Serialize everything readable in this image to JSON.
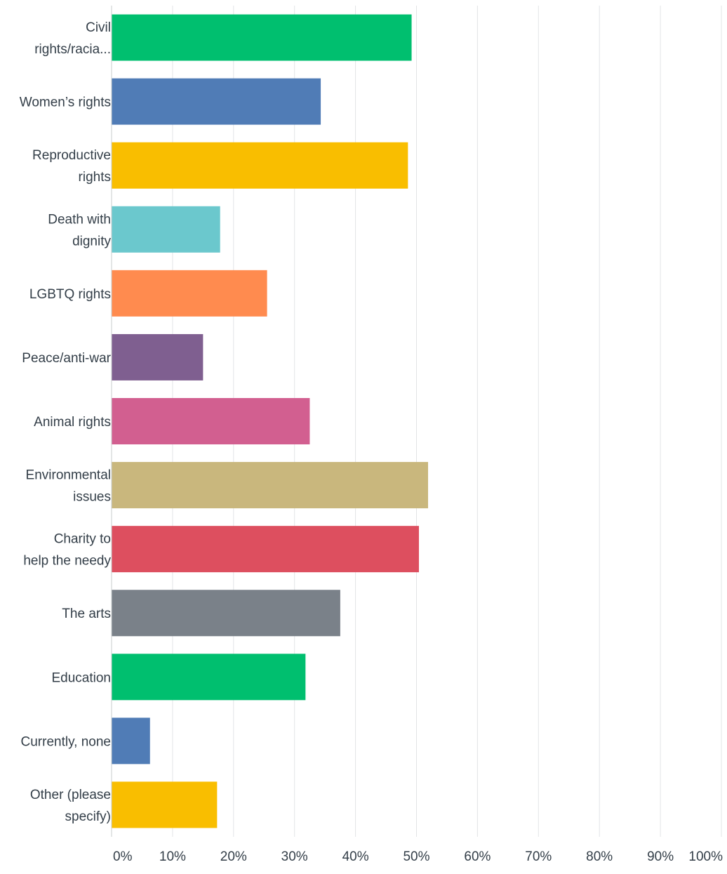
{
  "chart_data": {
    "type": "bar",
    "orientation": "horizontal",
    "categories": [
      [
        "Civil",
        "rights/racia..."
      ],
      [
        "Women’s rights"
      ],
      [
        "Reproductive",
        "rights"
      ],
      [
        "Death with",
        "dignity"
      ],
      [
        "LGBTQ rights"
      ],
      [
        "Peace/anti-war"
      ],
      [
        "Animal rights"
      ],
      [
        "Environmental",
        "issues"
      ],
      [
        "Charity to",
        "help the needy"
      ],
      [
        "The arts"
      ],
      [
        "Education"
      ],
      [
        "Currently, none"
      ],
      [
        "Other (please",
        "specify)"
      ]
    ],
    "values": [
      49.2,
      34.3,
      48.6,
      17.8,
      25.5,
      15.0,
      32.5,
      51.9,
      50.4,
      37.5,
      31.8,
      6.3,
      17.3
    ],
    "colors": [
      "#00bf6f",
      "#507cb6",
      "#f9be00",
      "#6bc8cd",
      "#ff8b4f",
      "#7f5f90",
      "#d25f90",
      "#c9b77d",
      "#dd4f5f",
      "#7a8189",
      "#00bf6f",
      "#507cb6",
      "#f9be00"
    ],
    "xlim": [
      0,
      100
    ],
    "x_ticks": [
      "0%",
      "10%",
      "20%",
      "30%",
      "40%",
      "50%",
      "60%",
      "70%",
      "80%",
      "90%",
      "100%"
    ],
    "grid": true,
    "gridline_color": "#e2e4e6",
    "axis_color": "#c8ccce",
    "text_color": "#333e48"
  }
}
